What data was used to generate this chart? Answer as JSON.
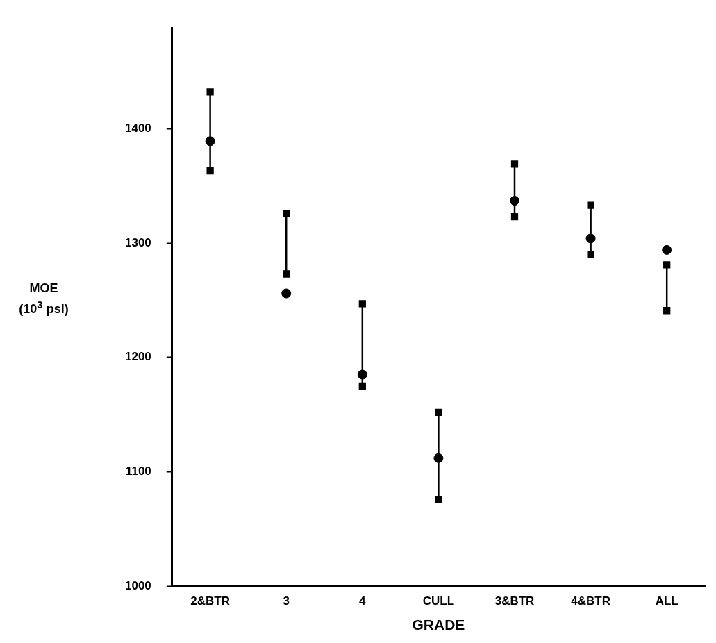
{
  "chart_data": {
    "type": "scatter",
    "xlabel": "GRADE",
    "ylabel": "MOE\n(10$^{3}$ psi)",
    "categories": [
      "2&BTR",
      "3",
      "4",
      "CULL",
      "3&BTR",
      "4&BTR",
      "ALL"
    ],
    "ylim": [
      1000,
      1488
    ],
    "yticks": [
      1000,
      1100,
      1200,
      1300,
      1400
    ],
    "grid": false,
    "legend": false,
    "series": [
      {
        "type": "line",
        "color": "#000000",
        "x": [
          "2&BTR",
          "2&BTR"
        ],
        "values": [
          1363,
          1432
        ],
        "marker": "square"
      },
      {
        "type": "line",
        "color": "#000000",
        "x": [
          "3",
          "3"
        ],
        "values": [
          1273,
          1326
        ],
        "marker": "square"
      },
      {
        "type": "line",
        "color": "#000000",
        "x": [
          "4",
          "4"
        ],
        "values": [
          1175,
          1247
        ],
        "marker": "square"
      },
      {
        "type": "line",
        "color": "#000000",
        "x": [
          "CULL",
          "CULL"
        ],
        "values": [
          1076,
          1152
        ],
        "marker": "square"
      },
      {
        "type": "line",
        "color": "#000000",
        "x": [
          "3&BTR",
          "3&BTR"
        ],
        "values": [
          1323,
          1369
        ],
        "marker": "square"
      },
      {
        "type": "line",
        "color": "#000000",
        "x": [
          "4&BTR",
          "4&BTR"
        ],
        "values": [
          1290,
          1333
        ],
        "marker": "square"
      },
      {
        "type": "line",
        "color": "#000000",
        "x": [
          "ALL",
          "ALL"
        ],
        "values": [
          1241,
          1281
        ],
        "marker": "square"
      },
      {
        "color": "#000000",
        "values": [
          1389,
          1256,
          1185,
          1112,
          1337,
          1304,
          1294
        ],
        "marker": "circle"
      }
    ]
  }
}
